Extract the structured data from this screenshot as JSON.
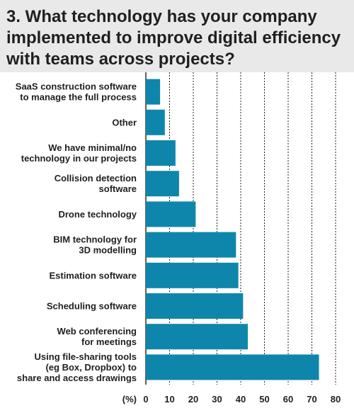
{
  "title": "3. What technology has your company\nimplemented to improve digital efficiency\nwith teams across projects?",
  "colors": {
    "bar": "#0e86ac",
    "background": "#e9e9e9",
    "panel": "#ffffff",
    "grid": "#1f1f1f",
    "text": "#1f1f1f"
  },
  "chart_data": {
    "type": "bar",
    "orientation": "horizontal",
    "title": "3. What technology has your company implemented to improve digital efficiency with teams across projects?",
    "categories": [
      "SaaS construction software\nto manage the full process",
      "Other",
      "We have minimal/no\ntechnology in our projects",
      "Collision detection\nsoftware",
      "Drone technology",
      "BIM technology for\n3D modelling",
      "Estimation software",
      "Scheduling software",
      "Web conferencing\nfor meetings",
      "Using file-sharing tools\n(eg Box, Dropbox) to\nshare and access drawings"
    ],
    "values": [
      6,
      8,
      12.5,
      14,
      21,
      38,
      39,
      41,
      43,
      73
    ],
    "xlabel": "(%)",
    "ylabel": "",
    "xlim": [
      0,
      80
    ],
    "xticks": [
      0,
      10,
      20,
      30,
      40,
      50,
      60,
      70,
      80
    ],
    "grid": "dotted vertical lines"
  }
}
